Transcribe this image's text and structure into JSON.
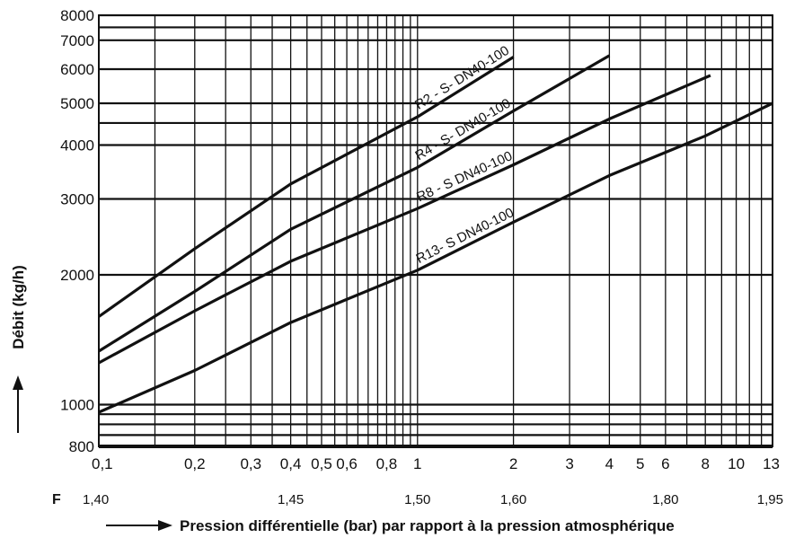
{
  "chart_data": {
    "type": "line",
    "xscale": "log",
    "yscale": "log",
    "xlabel": "Pression différentielle (bar) par rapport à la pression atmosphérique",
    "ylabel": "Débit (kg/h)",
    "xlim": [
      0.1,
      13
    ],
    "ylim": [
      800,
      8000
    ],
    "grid": true,
    "x_ticks": [
      "0,1",
      "0,2",
      "0,3",
      "0,4",
      "0,5",
      "0,6",
      "0,8",
      "1",
      "2",
      "3",
      "4",
      "5",
      "6",
      "8",
      "10",
      "13"
    ],
    "x_tick_values": [
      0.1,
      0.2,
      0.3,
      0.4,
      0.5,
      0.6,
      0.8,
      1,
      2,
      3,
      4,
      5,
      6,
      8,
      10,
      13
    ],
    "y_ticks": [
      "800",
      "1000",
      "2000",
      "3000",
      "4000",
      "5000",
      "6000",
      "7000",
      "8000"
    ],
    "y_tick_values": [
      800,
      1000,
      2000,
      3000,
      4000,
      5000,
      6000,
      7000,
      8000
    ],
    "x_grid_values": [
      0.1,
      0.15,
      0.2,
      0.25,
      0.3,
      0.35,
      0.4,
      0.45,
      0.5,
      0.55,
      0.6,
      0.65,
      0.7,
      0.75,
      0.8,
      0.85,
      0.9,
      0.95,
      1,
      2,
      3,
      4,
      5,
      6,
      7,
      8,
      9,
      10,
      11,
      12,
      13
    ],
    "y_grid_values": [
      800,
      850,
      900,
      950,
      1000,
      2000,
      3000,
      4000,
      4500,
      5000,
      6000,
      7000,
      7500,
      8000
    ],
    "secondary_axis": {
      "marker": "F",
      "tick_labels": [
        "1,40",
        "1,45",
        "1,50",
        "1,60",
        "1,80",
        "1,95"
      ],
      "at_pressure": [
        0.1,
        0.4,
        1,
        2,
        6,
        13
      ]
    },
    "series": [
      {
        "name": "R2 - S- DN40-100",
        "x": [
          0.1,
          0.2,
          0.4,
          1,
          2
        ],
        "y": [
          1600,
          2300,
          3250,
          4650,
          6400
        ]
      },
      {
        "name": "R4 - S- DN40-100",
        "x": [
          0.1,
          0.2,
          0.4,
          1,
          2,
          4
        ],
        "y": [
          1330,
          1830,
          2550,
          3550,
          4800,
          6450
        ]
      },
      {
        "name": "R8 - S DN40-100",
        "x": [
          0.1,
          0.2,
          0.4,
          1,
          2,
          4,
          8.3
        ],
        "y": [
          1250,
          1650,
          2150,
          2850,
          3600,
          4600,
          5800
        ]
      },
      {
        "name": "R13- S DN40-100",
        "x": [
          0.1,
          0.2,
          0.4,
          1,
          2,
          4,
          8,
          13
        ],
        "y": [
          960,
          1200,
          1550,
          2050,
          2650,
          3400,
          4200,
          5000
        ]
      }
    ]
  }
}
